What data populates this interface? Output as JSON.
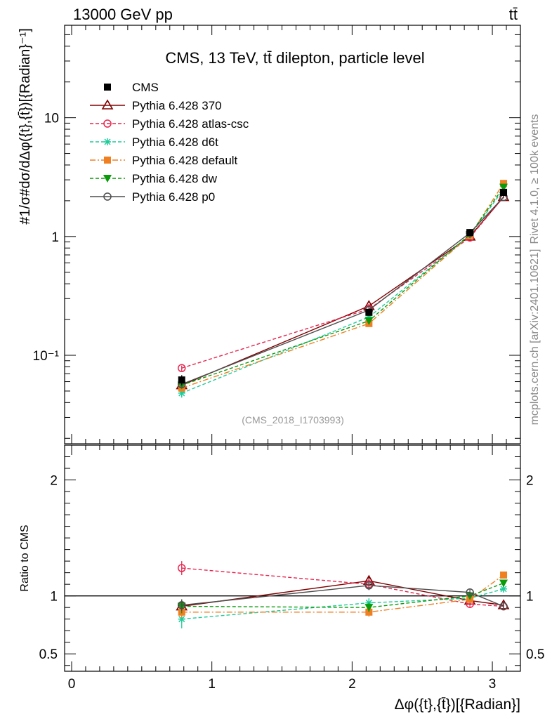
{
  "header": {
    "energy_label": "13000 GeV pp",
    "process_label": "tt̄"
  },
  "side_labels": {
    "rivet": "Rivet 4.1.0, ≥ 100k events",
    "source": "mcplots.cern.ch [arXiv:2401.10621]"
  },
  "chart_data": {
    "type": "line",
    "title": "CMS, 13 TeV, tt̄ dilepton, particle level",
    "analysis_id": "(CMS_2018_I1703993)",
    "xlabel": "Δφ({t},{t̄})[{Radian}]",
    "ylabel": "#1/σ#dσ/dΔφ({t},{t̄})[{Radian}⁻¹]",
    "ratio_ylabel": "Ratio to CMS",
    "xlim": [
      -0.05,
      3.2
    ],
    "ylim": [
      0.018,
      60
    ],
    "yscale": "log",
    "ratio_ylim": [
      0.35,
      2.3
    ],
    "x_ticks": [
      "0",
      "1",
      "2",
      "3"
    ],
    "y_ticks": [
      "10⁻¹",
      "1",
      "10"
    ],
    "ratio_ticks": [
      "0.5",
      "1",
      "2"
    ],
    "x": [
      0.785,
      2.12,
      2.84,
      3.08
    ],
    "series": [
      {
        "name": "CMS",
        "color": "#000000",
        "marker": "square-filled",
        "dash": "none",
        "values": [
          0.062,
          0.23,
          1.08,
          2.35
        ],
        "errors": [
          0.006,
          0.015,
          0.06,
          0.12
        ],
        "ratio": [
          1.0,
          1.0,
          1.0,
          1.0
        ],
        "ratio_errors": [
          0.08,
          0.06,
          0.04,
          0.05
        ]
      },
      {
        "name": "Pythia 6.428 370",
        "color": "#800000",
        "marker": "triangle-open",
        "dash": "none",
        "values": [
          0.056,
          0.26,
          1.0,
          2.15
        ],
        "errors": [
          0.003,
          0.01,
          0.03,
          0.05
        ],
        "ratio": [
          0.91,
          1.13,
          0.96,
          0.92
        ],
        "ratio_errors": [
          0.05,
          0.04,
          0.03,
          0.03
        ]
      },
      {
        "name": "Pythia 6.428 atlas-csc",
        "color": "#e8254e",
        "marker": "circle-open",
        "dash": "5,3",
        "values": [
          0.078,
          0.245,
          0.98,
          2.15
        ],
        "errors": [
          0.004,
          0.01,
          0.03,
          0.05
        ],
        "ratio": [
          1.24,
          1.1,
          0.93,
          0.91
        ],
        "ratio_errors": [
          0.06,
          0.04,
          0.03,
          0.03
        ]
      },
      {
        "name": "Pythia 6.428 d6t",
        "color": "#1fcc99",
        "marker": "star",
        "dash": "5,3",
        "values": [
          0.048,
          0.21,
          1.02,
          2.5
        ],
        "errors": [
          0.004,
          0.01,
          0.03,
          0.05
        ],
        "ratio": [
          0.8,
          0.94,
          0.98,
          1.06
        ],
        "ratio_errors": [
          0.08,
          0.04,
          0.03,
          0.03
        ]
      },
      {
        "name": "Pythia 6.428 default",
        "color": "#f07f21",
        "marker": "square-filled",
        "dash": "8,3,2,3",
        "values": [
          0.053,
          0.185,
          1.02,
          2.8
        ],
        "errors": [
          0.003,
          0.01,
          0.03,
          0.06
        ],
        "ratio": [
          0.86,
          0.86,
          0.97,
          1.18
        ],
        "ratio_errors": [
          0.05,
          0.04,
          0.03,
          0.03
        ]
      },
      {
        "name": "Pythia 6.428 dw",
        "color": "#0a9a0a",
        "marker": "triangle-down-filled",
        "dash": "5,3",
        "values": [
          0.056,
          0.195,
          1.04,
          2.6
        ],
        "errors": [
          0.003,
          0.01,
          0.03,
          0.05
        ],
        "ratio": [
          0.91,
          0.9,
          1.0,
          1.11
        ],
        "ratio_errors": [
          0.06,
          0.04,
          0.03,
          0.03
        ]
      },
      {
        "name": "Pythia 6.428 p0",
        "color": "#4d4d4d",
        "marker": "circle-open",
        "dash": "none",
        "values": [
          0.057,
          0.24,
          1.07,
          2.15
        ],
        "errors": [
          0.003,
          0.01,
          0.03,
          0.05
        ],
        "ratio": [
          0.92,
          1.09,
          1.03,
          0.91
        ],
        "ratio_errors": [
          0.05,
          0.04,
          0.03,
          0.03
        ]
      }
    ]
  }
}
